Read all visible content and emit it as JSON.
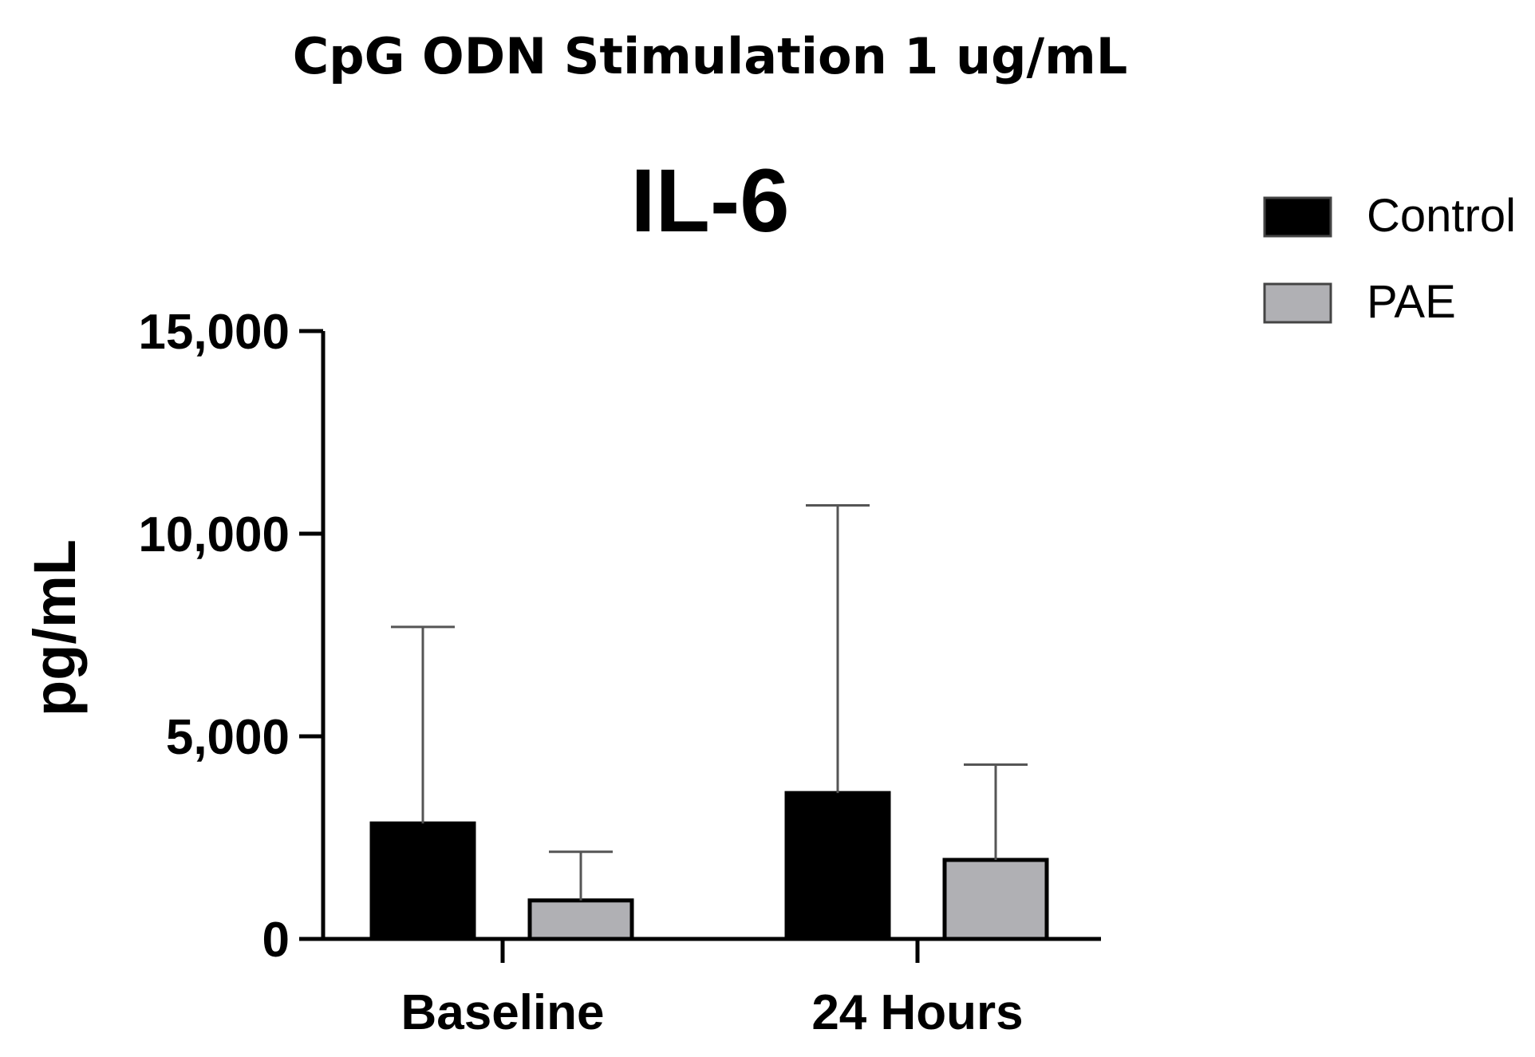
{
  "chart_data": {
    "type": "bar",
    "suptitle": "CpG ODN Stimulation 1 ug/mL",
    "title": "IL-6",
    "xlabel": "",
    "ylabel": "pg/mL",
    "categories": [
      "Baseline",
      "24 Hours"
    ],
    "ylim": [
      0,
      15000
    ],
    "yticks": [
      0,
      5000,
      10000,
      15000
    ],
    "ytick_labels": [
      "0",
      "5,000",
      "10,000",
      "15,000"
    ],
    "error_bars": "upper only",
    "legend_position": "top-right",
    "series": [
      {
        "name": "Control",
        "color": "#000000",
        "values": [
          2850,
          3600
        ],
        "errors": [
          4850,
          7100
        ]
      },
      {
        "name": "PAE",
        "color": "#b0b0b4",
        "values": [
          950,
          1950
        ],
        "errors": [
          1200,
          2350
        ]
      }
    ]
  }
}
